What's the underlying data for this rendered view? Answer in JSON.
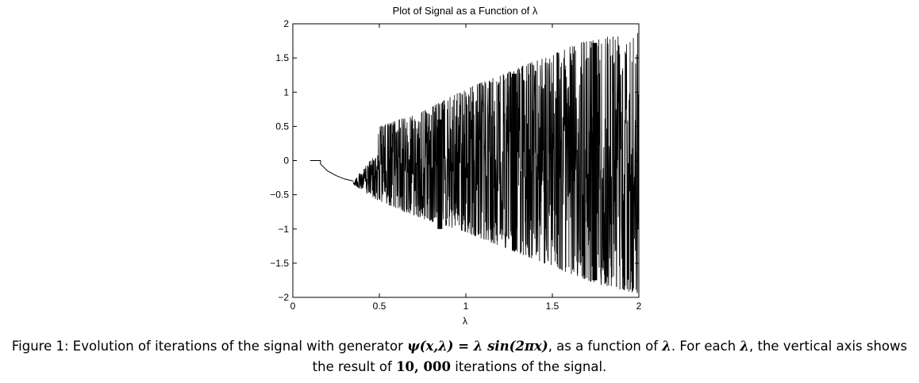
{
  "chart_data": {
    "type": "line",
    "title": "Plot of Signal as a Function of λ",
    "xlabel": "λ",
    "ylabel": "",
    "xlim": [
      0,
      2
    ],
    "ylim": [
      -2,
      2
    ],
    "x_ticks": [
      0,
      0.5,
      1,
      1.5,
      2
    ],
    "x_tick_labels": [
      "0",
      "0.5",
      "1",
      "1.5",
      "2"
    ],
    "y_ticks": [
      2,
      1.5,
      1,
      0.5,
      0,
      -0.5,
      -1,
      -1.5,
      -2
    ],
    "y_tick_labels": [
      "2",
      "1.5",
      "1",
      "0.5",
      "0",
      "−0.5",
      "−1",
      "−1.5",
      "−2"
    ],
    "series": [
      {
        "values_described_by_envelope": true,
        "flat_segment": {
          "x": [
            0.1,
            0.16
          ],
          "y": 0
        },
        "stable_branch": {
          "x": [
            0.16,
            0.16,
            0.2,
            0.25,
            0.3,
            0.35
          ],
          "y": [
            0,
            -0.05,
            -0.15,
            -0.22,
            -0.27,
            -0.3
          ]
        },
        "oscillation_start_x": 0.35,
        "upper_envelope": {
          "x": [
            0.35,
            0.48,
            0.5,
            0.75,
            1.0,
            1.25,
            1.5,
            1.75,
            2.0
          ],
          "y": [
            -0.3,
            0.1,
            0.5,
            0.72,
            1.05,
            1.3,
            1.57,
            1.8,
            1.9
          ]
        },
        "lower_envelope": {
          "x": [
            0.35,
            0.5,
            0.75,
            1.0,
            1.25,
            1.5,
            1.75,
            2.0
          ],
          "y": [
            -0.35,
            -0.6,
            -0.85,
            -1.05,
            -1.3,
            -1.55,
            -1.8,
            -1.95
          ]
        },
        "windows": [
          {
            "x": 0.85,
            "y": [
              -1.0,
              0.6
            ]
          },
          {
            "x": 1.28,
            "y": [
              -1.3,
              1.27
            ]
          },
          {
            "x": 1.745,
            "y": [
              -1.75,
              1.72
            ]
          }
        ]
      }
    ]
  },
  "caption": {
    "line1_prefix": "Figure 1: Evolution of iterations of the signal with generator ",
    "line1_formula_lhs": "ψ(x,λ)",
    "line1_equals": " = ",
    "line1_formula_rhs_lambda": "λ",
    "line1_formula_rhs_fn": " sin(2πx)",
    "line1_mid": ", as a function of ",
    "line1_lambda": "λ",
    "line1_suffix": ". For each ",
    "line1_lambda2": "λ",
    "line1_end": ", the vertical axis shows",
    "line2_prefix": "the result of ",
    "line2_number": "10, 000",
    "line2_suffix": " iterations of the signal."
  }
}
